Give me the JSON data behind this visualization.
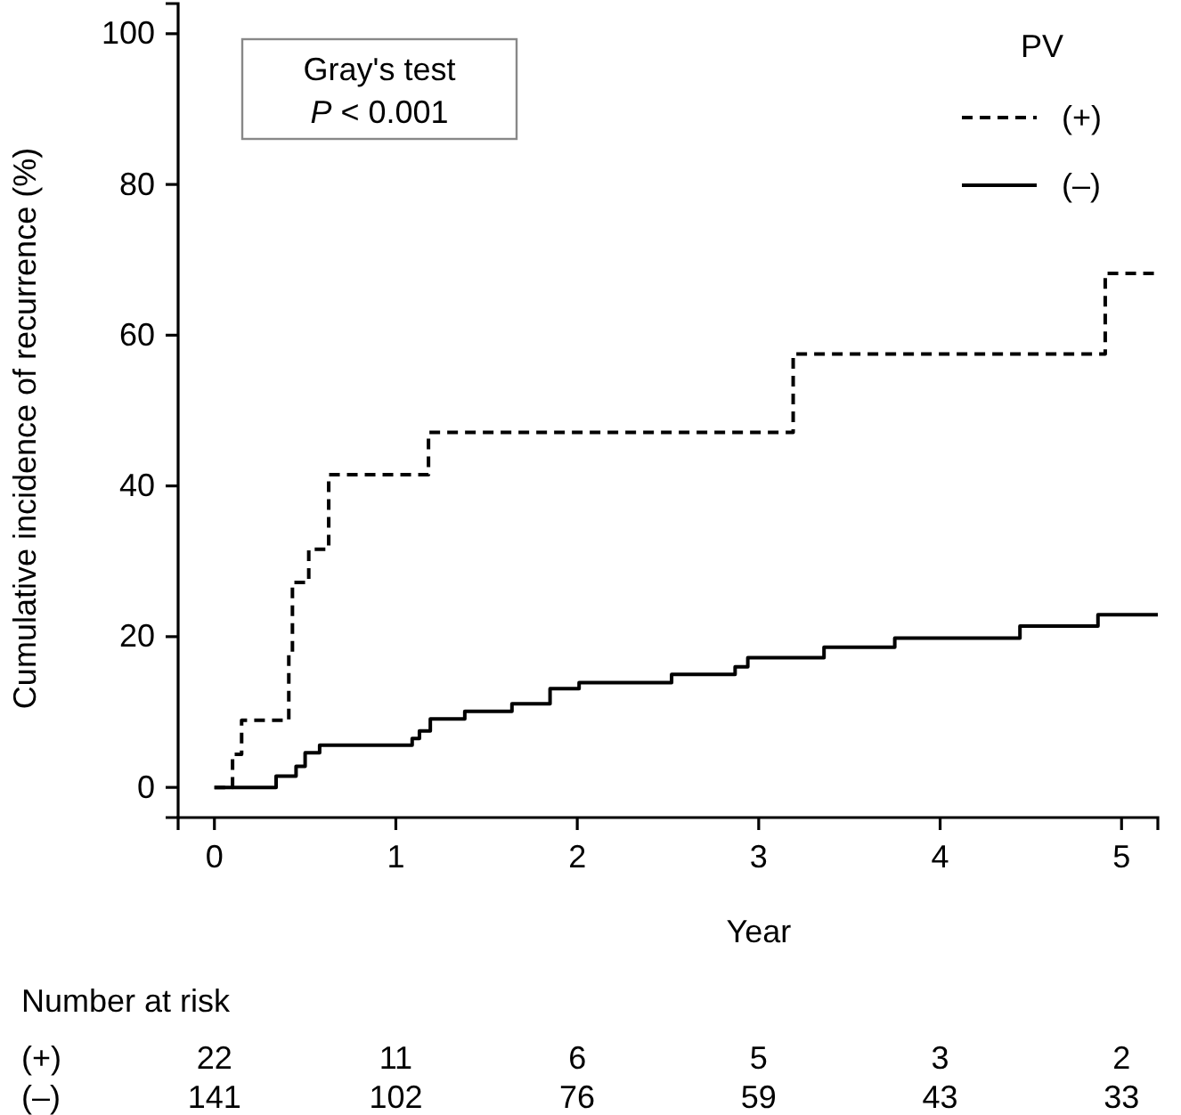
{
  "chart_data": {
    "type": "step",
    "xlabel": "Year",
    "ylabel": "Cumulative incidence of recurrence (%)",
    "legend_title": "PV",
    "legend": "top right",
    "xlim": [
      -0.2,
      5.2
    ],
    "xticks": [
      0,
      1,
      2,
      3,
      4,
      5
    ],
    "ylim": [
      -4,
      104
    ],
    "yticks": [
      0,
      20,
      40,
      60,
      80,
      100
    ],
    "grid": false,
    "series": [
      {
        "name": "(+)",
        "color": "#000000",
        "line_style": "dashed",
        "x": [
          0,
          0.1,
          0.15,
          0.41,
          0.43,
          0.52,
          0.63,
          1.18,
          3.19,
          4.91,
          5.2
        ],
        "values": [
          0,
          4.4,
          8.9,
          17.7,
          27.2,
          31.6,
          41.5,
          47.1,
          57.5,
          68.2,
          68.2
        ]
      },
      {
        "name": "(–)",
        "color": "#000000",
        "line_style": "solid",
        "x": [
          0,
          0.34,
          0.45,
          0.5,
          0.58,
          1.09,
          1.13,
          1.19,
          1.38,
          1.64,
          1.85,
          2.01,
          2.52,
          2.87,
          2.94,
          3.36,
          3.75,
          4.44,
          4.87,
          5.2
        ],
        "values": [
          0,
          1.5,
          2.8,
          4.6,
          5.6,
          6.5,
          7.5,
          9.1,
          10.1,
          11.1,
          13.1,
          13.9,
          15.0,
          16.0,
          17.2,
          18.6,
          19.8,
          21.4,
          22.9,
          22.9
        ]
      }
    ],
    "annotations": [
      "Gray's test",
      "P < 0.001",
      "Number at risk",
      "(+)",
      "22",
      "11",
      "6",
      "5",
      "3",
      "2",
      "(–)",
      "141",
      "102",
      "76",
      "59",
      "43",
      "33"
    ]
  }
}
